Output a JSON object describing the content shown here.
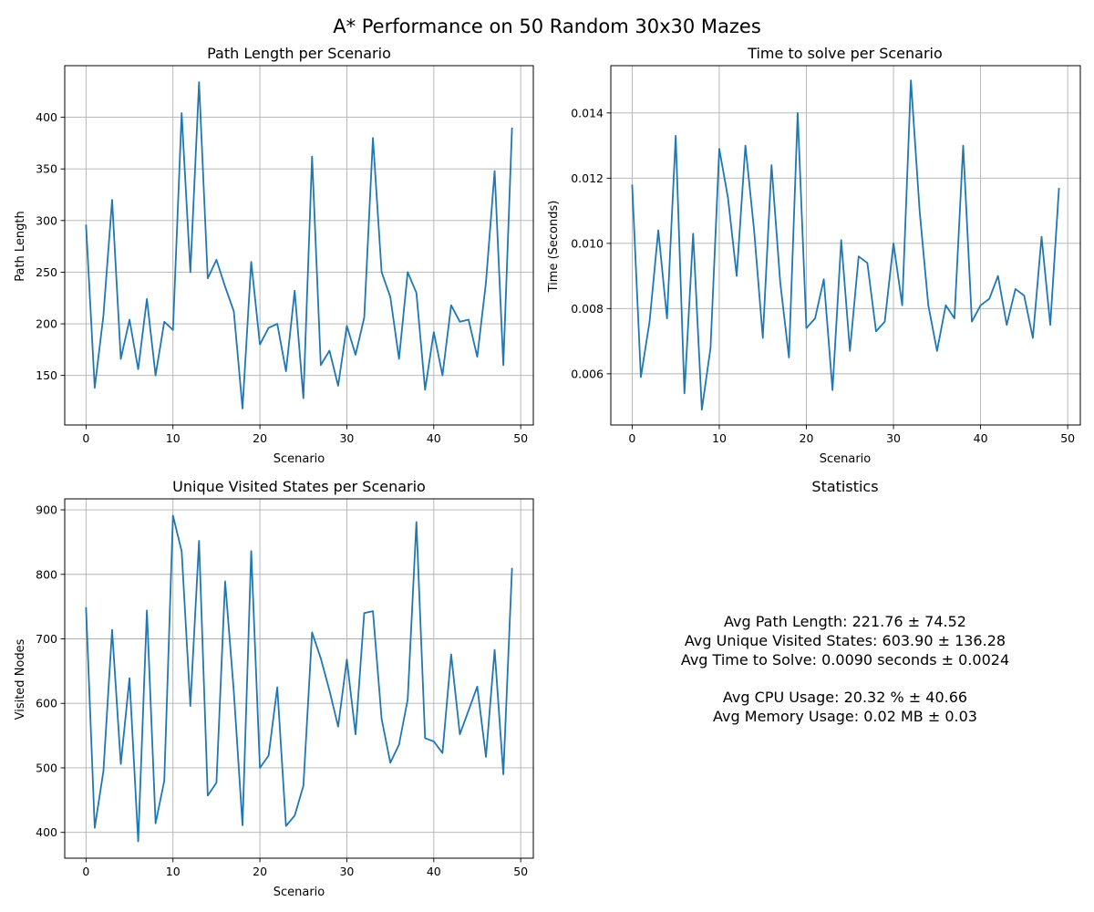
{
  "figure": {
    "title": "A* Performance on 50 Random 30x30 Mazes",
    "line_color": "#1f77b4"
  },
  "chart_data": [
    {
      "type": "line",
      "title": "Path Length per Scenario",
      "xlabel": "Scenario",
      "ylabel": "Path Length",
      "xlim": [
        -2.45,
        51.45
      ],
      "ylim": [
        102,
        450
      ],
      "xticks": [
        0,
        10,
        20,
        30,
        40,
        50
      ],
      "yticks": [
        150,
        200,
        250,
        300,
        350,
        400
      ],
      "grid": true,
      "series": [
        {
          "x": [
            0,
            1,
            2,
            3,
            4,
            5,
            6,
            7,
            8,
            9,
            10,
            11,
            12,
            13,
            14,
            15,
            16,
            17,
            18,
            19,
            20,
            21,
            22,
            23,
            24,
            25,
            26,
            27,
            28,
            29,
            30,
            31,
            32,
            33,
            34,
            35,
            36,
            37,
            38,
            39,
            40,
            41,
            42,
            43,
            44,
            45,
            46,
            47,
            48,
            49
          ],
          "values": [
            296,
            138,
            208,
            320,
            166,
            204,
            156,
            224,
            150,
            202,
            194,
            404,
            250,
            434,
            244,
            262,
            236,
            212,
            118,
            260,
            180,
            196,
            200,
            154,
            232,
            128,
            362,
            160,
            174,
            140,
            198,
            170,
            206,
            380,
            250,
            226,
            166,
            250,
            230,
            136,
            192,
            150,
            218,
            202,
            204,
            168,
            240,
            348,
            160,
            390
          ]
        }
      ]
    },
    {
      "type": "line",
      "title": "Time to solve per Scenario",
      "xlabel": "Scenario",
      "ylabel": "Time (Seconds)",
      "xlim": [
        -2.45,
        51.45
      ],
      "ylim": [
        0.00443,
        0.01545
      ],
      "xticks": [
        0,
        10,
        20,
        30,
        40,
        50
      ],
      "yticks": [
        0.006,
        0.008,
        0.01,
        0.012,
        0.014
      ],
      "ytick_decimals": 3,
      "grid": true,
      "series": [
        {
          "x": [
            0,
            1,
            2,
            3,
            4,
            5,
            6,
            7,
            8,
            9,
            10,
            11,
            12,
            13,
            14,
            15,
            16,
            17,
            18,
            19,
            20,
            21,
            22,
            23,
            24,
            25,
            26,
            27,
            28,
            29,
            30,
            31,
            32,
            33,
            34,
            35,
            36,
            37,
            38,
            39,
            40,
            41,
            42,
            43,
            44,
            45,
            46,
            47,
            48,
            49
          ],
          "values": [
            0.0118,
            0.0059,
            0.0076,
            0.0104,
            0.0077,
            0.0133,
            0.0054,
            0.0103,
            0.0049,
            0.0068,
            0.0129,
            0.0114,
            0.009,
            0.013,
            0.0104,
            0.0071,
            0.0124,
            0.0088,
            0.0065,
            0.014,
            0.0074,
            0.0077,
            0.0089,
            0.0055,
            0.0101,
            0.0067,
            0.0096,
            0.0094,
            0.0073,
            0.0076,
            0.01,
            0.0081,
            0.015,
            0.011,
            0.0081,
            0.0067,
            0.0081,
            0.0077,
            0.013,
            0.0076,
            0.0081,
            0.0083,
            0.009,
            0.0075,
            0.0086,
            0.0084,
            0.0071,
            0.0102,
            0.0075,
            0.0117
          ]
        }
      ]
    },
    {
      "type": "line",
      "title": "Unique Visited States per Scenario",
      "xlabel": "Scenario",
      "ylabel": "Visited Nodes",
      "xlim": [
        -2.45,
        51.45
      ],
      "ylim": [
        360,
        917
      ],
      "xticks": [
        0,
        10,
        20,
        30,
        40,
        50
      ],
      "yticks": [
        400,
        500,
        600,
        700,
        800,
        900
      ],
      "grid": true,
      "series": [
        {
          "x": [
            0,
            1,
            2,
            3,
            4,
            5,
            6,
            7,
            8,
            9,
            10,
            11,
            12,
            13,
            14,
            15,
            16,
            17,
            18,
            19,
            20,
            21,
            22,
            23,
            24,
            25,
            26,
            27,
            28,
            29,
            30,
            31,
            32,
            33,
            34,
            35,
            36,
            37,
            38,
            39,
            40,
            41,
            42,
            43,
            44,
            45,
            46,
            47,
            48,
            49
          ],
          "values": [
            749,
            407,
            495,
            714,
            506,
            639,
            386,
            744,
            414,
            480,
            891,
            836,
            596,
            852,
            457,
            477,
            789,
            618,
            411,
            836,
            500,
            519,
            625,
            410,
            426,
            472,
            710,
            670,
            620,
            564,
            668,
            552,
            740,
            743,
            576,
            508,
            536,
            606,
            881,
            546,
            541,
            523,
            676,
            552,
            589,
            626,
            517,
            683,
            490,
            810
          ]
        }
      ]
    }
  ],
  "stats": {
    "title": "Statistics",
    "lines": [
      "Avg Path Length: 221.76 ± 74.52",
      "Avg Unique Visited States: 603.90 ± 136.28",
      "Avg Time to Solve: 0.0090 seconds ± 0.0024",
      "",
      "Avg CPU Usage: 20.32 % ± 40.66",
      "Avg Memory Usage: 0.02 MB ± 0.03"
    ]
  }
}
